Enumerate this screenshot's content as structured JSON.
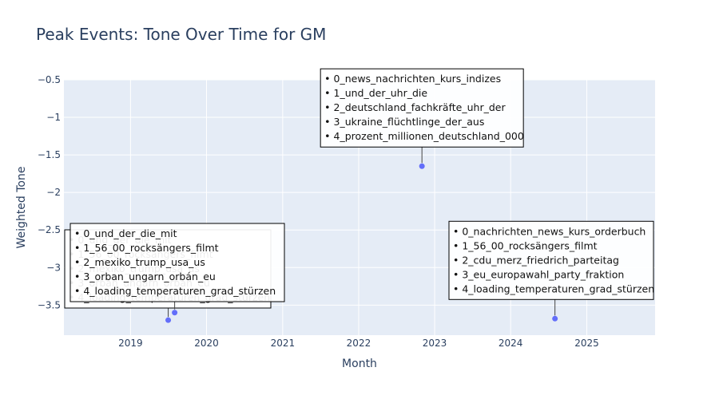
{
  "chart_data": {
    "type": "scatter",
    "title": "Peak Events: Tone Over Time for GM",
    "xlabel": "Month",
    "ylabel": "Weighted Tone",
    "xlim": [
      "2018-02-15",
      "2025-11-25"
    ],
    "ylim": [
      -3.9,
      -0.5
    ],
    "x_ticks": [
      "2019",
      "2020",
      "2021",
      "2022",
      "2023",
      "2024",
      "2025"
    ],
    "y_ticks": [
      "−0.5",
      "−1",
      "−1.5",
      "−2",
      "−2.5",
      "−3",
      "−3.5"
    ],
    "y_tick_values": [
      -0.5,
      -1,
      -1.5,
      -2,
      -2.5,
      -3,
      -3.5
    ],
    "grid": true,
    "marker_color": "#636efa",
    "plot_bg": "#e5ecf6",
    "points": [
      {
        "x": "2019-07-01",
        "y": -3.7,
        "annotation": [
          "• 0_und_der_die_mit",
          "• 1_56_00_rocksängers_filmt",
          "• 2_mexiko_trump_usa_us",
          "• 3_orban_ungarn_orbán_eu",
          "• 4_loading_temperaturen_grad_stürzen"
        ]
      },
      {
        "x": "2019-08-01",
        "y": -3.6,
        "annotation": [
          "• 0_und_der_die_mit",
          "• 1_56_00_rocksängers_filmt",
          "• 2_mexiko_trump_usa_us",
          "• 3_orban_ungarn_orbán_eu",
          "• 4_loading_temperaturen_grad_stürzen"
        ]
      },
      {
        "x": "2022-11-01",
        "y": -1.65,
        "annotation": [
          "• 0_news_nachrichten_kurs_indizes",
          "• 1_und_der_uhr_die",
          "• 2_deutschland_fachkräfte_uhr_der",
          "• 3_ukraine_flüchtlinge_der_aus",
          "• 4_prozent_millionen_deutschland_000"
        ]
      },
      {
        "x": "2024-08-01",
        "y": -3.68,
        "annotation": [
          "• 0_nachrichten_news_kurs_orderbuch",
          "• 1_56_00_rocksängers_filmt",
          "• 2_cdu_merz_friedrich_parteitag",
          "• 3_eu_europawahl_party_fraktion",
          "• 4_loading_temperaturen_grad_stürzen"
        ]
      }
    ]
  }
}
